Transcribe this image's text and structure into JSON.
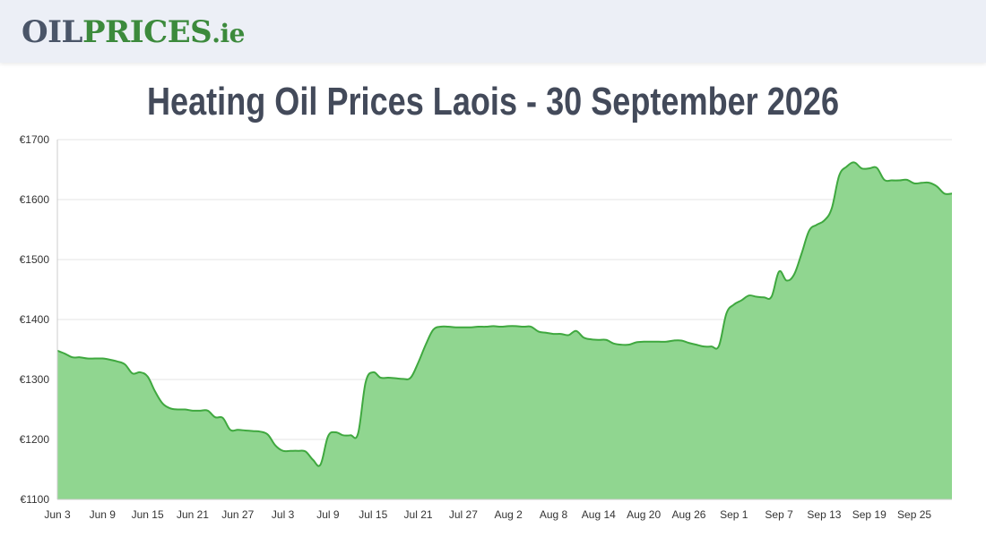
{
  "header": {
    "logo_part1": "OIL",
    "logo_part2": "PRICES",
    "logo_part3": ".ie"
  },
  "page": {
    "title": "Heating Oil Prices Laois - 30 September 2026"
  },
  "colors": {
    "line": "#3fa83f",
    "fill": "#90d690",
    "grid": "#e6e6e6",
    "title": "#434a5a",
    "header_bg": "#eceff6"
  },
  "chart_data": {
    "type": "area",
    "title": "",
    "xlabel": "",
    "ylabel": "",
    "ylim": [
      1100,
      1700
    ],
    "yticks": [
      1100,
      1200,
      1300,
      1400,
      1500,
      1600,
      1700
    ],
    "ytick_labels": [
      "€1100",
      "€1200",
      "€1300",
      "€1400",
      "€1500",
      "€1600",
      "€1700"
    ],
    "xticks": [
      {
        "day": 0,
        "label": "Jun 3"
      },
      {
        "day": 6,
        "label": "Jun 9"
      },
      {
        "day": 12,
        "label": "Jun 15"
      },
      {
        "day": 18,
        "label": "Jun 21"
      },
      {
        "day": 24,
        "label": "Jun 27"
      },
      {
        "day": 30,
        "label": "Jul 3"
      },
      {
        "day": 36,
        "label": "Jul 9"
      },
      {
        "day": 42,
        "label": "Jul 15"
      },
      {
        "day": 48,
        "label": "Jul 21"
      },
      {
        "day": 54,
        "label": "Jul 27"
      },
      {
        "day": 60,
        "label": "Aug 2"
      },
      {
        "day": 66,
        "label": "Aug 8"
      },
      {
        "day": 72,
        "label": "Aug 14"
      },
      {
        "day": 78,
        "label": "Aug 20"
      },
      {
        "day": 84,
        "label": "Aug 26"
      },
      {
        "day": 90,
        "label": "Sep 1"
      },
      {
        "day": 96,
        "label": "Sep 7"
      },
      {
        "day": 102,
        "label": "Sep 13"
      },
      {
        "day": 108,
        "label": "Sep 19"
      },
      {
        "day": 114,
        "label": "Sep 25"
      }
    ],
    "xlim": [
      0,
      119
    ],
    "grid": true,
    "legend": "none",
    "series": [
      {
        "x": [
          0,
          1,
          2,
          3,
          4,
          5,
          6,
          7,
          8,
          9,
          10,
          11,
          12,
          13,
          14,
          15,
          16,
          17,
          18,
          19,
          20,
          21,
          22,
          23,
          24,
          25,
          26,
          27,
          28,
          29,
          30,
          31,
          32,
          33,
          34,
          35,
          36,
          37,
          38,
          39,
          40,
          41,
          42,
          43,
          44,
          45,
          46,
          47,
          48,
          49,
          50,
          51,
          52,
          53,
          54,
          55,
          56,
          57,
          58,
          59,
          60,
          61,
          62,
          63,
          64,
          65,
          66,
          67,
          68,
          69,
          70,
          71,
          72,
          73,
          74,
          75,
          76,
          77,
          78,
          79,
          80,
          81,
          82,
          83,
          84,
          85,
          86,
          87,
          88,
          89,
          90,
          91,
          92,
          93,
          94,
          95,
          96,
          97,
          98,
          99,
          100,
          101,
          102,
          103,
          104,
          105,
          106,
          107,
          108,
          109,
          110,
          111,
          112,
          113,
          114,
          115,
          116,
          117,
          118,
          119
        ],
        "values": [
          1348,
          1343,
          1337,
          1337,
          1335,
          1335,
          1335,
          1333,
          1330,
          1325,
          1310,
          1312,
          1305,
          1280,
          1260,
          1252,
          1250,
          1250,
          1248,
          1248,
          1248,
          1237,
          1236,
          1216,
          1216,
          1215,
          1214,
          1213,
          1208,
          1190,
          1181,
          1181,
          1181,
          1180,
          1166,
          1158,
          1205,
          1212,
          1207,
          1207,
          1210,
          1295,
          1312,
          1303,
          1303,
          1302,
          1301,
          1303,
          1328,
          1358,
          1383,
          1388,
          1388,
          1387,
          1387,
          1387,
          1388,
          1388,
          1389,
          1388,
          1389,
          1389,
          1388,
          1388,
          1380,
          1378,
          1376,
          1376,
          1374,
          1381,
          1370,
          1367,
          1366,
          1366,
          1360,
          1358,
          1358,
          1362,
          1363,
          1363,
          1363,
          1363,
          1365,
          1365,
          1361,
          1358,
          1355,
          1355,
          1356,
          1410,
          1425,
          1432,
          1440,
          1438,
          1437,
          1438,
          1480,
          1465,
          1475,
          1510,
          1548,
          1558,
          1565,
          1585,
          1640,
          1655,
          1662,
          1652,
          1652,
          1653,
          1633,
          1632,
          1632,
          1633,
          1627,
          1628,
          1628,
          1622,
          1610,
          1610
        ]
      }
    ]
  }
}
